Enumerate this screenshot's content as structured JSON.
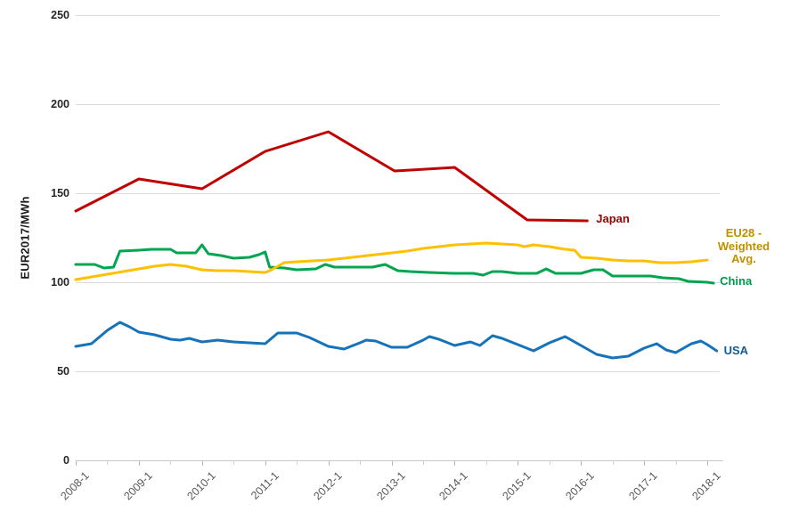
{
  "chart_data": {
    "type": "line",
    "title": "",
    "xlabel": "",
    "ylabel": "EUR2017/MWh",
    "grid": true,
    "legend_position": "end-of-line-labels",
    "y_axis": {
      "min": 0,
      "max": 250,
      "ticks": [
        0,
        50,
        100,
        150,
        200,
        250
      ]
    },
    "x_axis": {
      "minor_tick_interval_years": 0.5,
      "ticks": [
        {
          "label": "2008-1",
          "year": 2008
        },
        {
          "label": "2009-1",
          "year": 2009
        },
        {
          "label": "2010-1",
          "year": 2010
        },
        {
          "label": "2011-1",
          "year": 2011
        },
        {
          "label": "2012-1",
          "year": 2012
        },
        {
          "label": "2013-1",
          "year": 2013
        },
        {
          "label": "2014-1",
          "year": 2014
        },
        {
          "label": "2015-1",
          "year": 2015
        },
        {
          "label": "2016-1",
          "year": 2016
        },
        {
          "label": "2017-1",
          "year": 2017
        },
        {
          "label": "2018-1",
          "year": 2018
        }
      ]
    },
    "colors": {
      "grid": "#d9d9d9",
      "axis": "#c8c8c8",
      "major_tick": "#b5b5b5",
      "minor_tick": "#d5d5d5",
      "y_tick_text": "#262626",
      "x_tick_text": "#595959"
    },
    "series": [
      {
        "id": "usa",
        "name": "USA",
        "label_lines": [
          "USA"
        ],
        "color": "#1673BA",
        "label_color": "#135C97",
        "points": [
          [
            2008.0,
            64
          ],
          [
            2008.25,
            65.5
          ],
          [
            2008.5,
            73
          ],
          [
            2008.7,
            77.5
          ],
          [
            2008.85,
            75
          ],
          [
            2009.0,
            72
          ],
          [
            2009.25,
            70.5
          ],
          [
            2009.5,
            68
          ],
          [
            2009.65,
            67.5
          ],
          [
            2009.8,
            68.5
          ],
          [
            2010.0,
            66.5
          ],
          [
            2010.25,
            67.5
          ],
          [
            2010.5,
            66.5
          ],
          [
            2010.75,
            66
          ],
          [
            2011.0,
            65.5
          ],
          [
            2011.2,
            71.5
          ],
          [
            2011.5,
            71.5
          ],
          [
            2011.7,
            69
          ],
          [
            2012.0,
            64
          ],
          [
            2012.25,
            62.5
          ],
          [
            2012.5,
            66
          ],
          [
            2012.6,
            67.5
          ],
          [
            2012.75,
            67
          ],
          [
            2013.0,
            63.5
          ],
          [
            2013.25,
            63.5
          ],
          [
            2013.5,
            67.5
          ],
          [
            2013.6,
            69.5
          ],
          [
            2013.75,
            68
          ],
          [
            2014.0,
            64.5
          ],
          [
            2014.25,
            66.5
          ],
          [
            2014.4,
            64.5
          ],
          [
            2014.6,
            70
          ],
          [
            2014.75,
            68.5
          ],
          [
            2015.0,
            65
          ],
          [
            2015.25,
            61.5
          ],
          [
            2015.5,
            66
          ],
          [
            2015.75,
            69.5
          ],
          [
            2016.0,
            64.5
          ],
          [
            2016.25,
            59.5
          ],
          [
            2016.5,
            57.5
          ],
          [
            2016.75,
            58.5
          ],
          [
            2017.0,
            63
          ],
          [
            2017.2,
            65.5
          ],
          [
            2017.35,
            62
          ],
          [
            2017.5,
            60.5
          ],
          [
            2017.75,
            65.5
          ],
          [
            2017.9,
            67
          ],
          [
            2018.0,
            65
          ],
          [
            2018.15,
            61.5
          ]
        ]
      },
      {
        "id": "china",
        "name": "China",
        "label_lines": [
          "China"
        ],
        "color": "#00A550",
        "label_color": "#00964B",
        "points": [
          [
            2008.0,
            110
          ],
          [
            2008.3,
            110
          ],
          [
            2008.45,
            108
          ],
          [
            2008.6,
            108.5
          ],
          [
            2008.7,
            117.5
          ],
          [
            2009.0,
            118
          ],
          [
            2009.2,
            118.5
          ],
          [
            2009.5,
            118.5
          ],
          [
            2009.6,
            116.5
          ],
          [
            2009.9,
            116.5
          ],
          [
            2010.0,
            121
          ],
          [
            2010.1,
            116
          ],
          [
            2010.3,
            115
          ],
          [
            2010.5,
            113.5
          ],
          [
            2010.75,
            114
          ],
          [
            2010.9,
            115.5
          ],
          [
            2011.0,
            117
          ],
          [
            2011.07,
            108.5
          ],
          [
            2011.3,
            108
          ],
          [
            2011.5,
            107
          ],
          [
            2011.8,
            107.5
          ],
          [
            2011.95,
            110
          ],
          [
            2012.1,
            108.5
          ],
          [
            2012.7,
            108.5
          ],
          [
            2012.9,
            110
          ],
          [
            2013.1,
            106.5
          ],
          [
            2013.3,
            106
          ],
          [
            2013.6,
            105.5
          ],
          [
            2014.0,
            105
          ],
          [
            2014.3,
            105
          ],
          [
            2014.45,
            104
          ],
          [
            2014.6,
            106
          ],
          [
            2014.75,
            106
          ],
          [
            2015.0,
            105
          ],
          [
            2015.3,
            105
          ],
          [
            2015.45,
            107.5
          ],
          [
            2015.6,
            105
          ],
          [
            2016.0,
            105
          ],
          [
            2016.2,
            107
          ],
          [
            2016.35,
            107
          ],
          [
            2016.5,
            103.5
          ],
          [
            2017.1,
            103.5
          ],
          [
            2017.3,
            102.5
          ],
          [
            2017.55,
            102
          ],
          [
            2017.7,
            100.5
          ],
          [
            2018.0,
            100
          ],
          [
            2018.1,
            99.5
          ]
        ]
      },
      {
        "id": "eu28",
        "name": "EU28 - Weighted Avg.",
        "label_lines": [
          "EU28 -",
          "Weighted",
          "Avg."
        ],
        "color": "#FFC000",
        "label_color": "#BF9000",
        "points": [
          [
            2008.0,
            101.5
          ],
          [
            2008.25,
            103
          ],
          [
            2008.5,
            104.5
          ],
          [
            2008.75,
            106
          ],
          [
            2009.0,
            107.5
          ],
          [
            2009.25,
            109
          ],
          [
            2009.5,
            110
          ],
          [
            2009.75,
            109
          ],
          [
            2010.0,
            107
          ],
          [
            2010.25,
            106.5
          ],
          [
            2010.5,
            106.5
          ],
          [
            2010.75,
            106
          ],
          [
            2011.0,
            105.5
          ],
          [
            2011.1,
            107
          ],
          [
            2011.3,
            111
          ],
          [
            2011.5,
            111.5
          ],
          [
            2011.75,
            112
          ],
          [
            2012.0,
            112.5
          ],
          [
            2012.25,
            113.5
          ],
          [
            2012.5,
            114.5
          ],
          [
            2012.75,
            115.5
          ],
          [
            2013.0,
            116.5
          ],
          [
            2013.25,
            117.5
          ],
          [
            2013.5,
            119
          ],
          [
            2013.75,
            120
          ],
          [
            2014.0,
            121
          ],
          [
            2014.25,
            121.5
          ],
          [
            2014.5,
            122
          ],
          [
            2014.75,
            121.5
          ],
          [
            2015.0,
            121
          ],
          [
            2015.1,
            120
          ],
          [
            2015.25,
            121
          ],
          [
            2015.5,
            120
          ],
          [
            2015.75,
            118.5
          ],
          [
            2015.9,
            118
          ],
          [
            2016.0,
            114
          ],
          [
            2016.25,
            113.5
          ],
          [
            2016.5,
            112.5
          ],
          [
            2016.75,
            112
          ],
          [
            2017.0,
            112
          ],
          [
            2017.25,
            111
          ],
          [
            2017.5,
            111
          ],
          [
            2017.75,
            111.5
          ],
          [
            2018.0,
            112.5
          ]
        ]
      },
      {
        "id": "japan",
        "name": "Japan",
        "label_lines": [
          "Japan"
        ],
        "color": "#C00000",
        "label_color": "#A00000",
        "points": [
          [
            2008.0,
            140
          ],
          [
            2009.0,
            158
          ],
          [
            2010.0,
            152.5
          ],
          [
            2011.0,
            173.5
          ],
          [
            2012.0,
            184.5
          ],
          [
            2013.05,
            162.5
          ],
          [
            2013.3,
            163
          ],
          [
            2014.0,
            164.5
          ],
          [
            2015.15,
            135
          ],
          [
            2016.1,
            134.5
          ]
        ]
      }
    ]
  }
}
